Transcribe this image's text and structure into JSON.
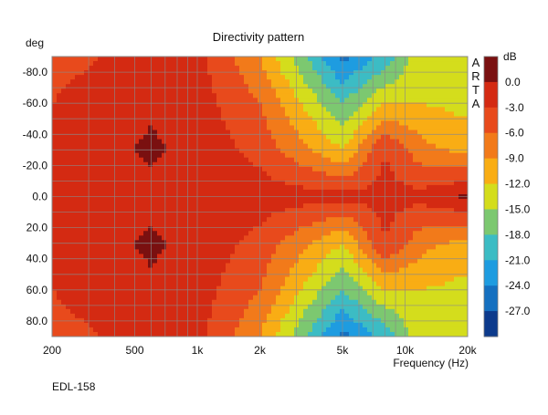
{
  "chart_data": {
    "type": "heatmap",
    "title": "Directivity pattern",
    "ylabel": "deg",
    "xlabel": "Frequency (Hz)",
    "x_scale": "log",
    "xlim": [
      200,
      20000
    ],
    "ylim": [
      -90,
      90
    ],
    "y_inverted": true,
    "x_ticks": [
      {
        "value": 200,
        "label": "200"
      },
      {
        "value": 500,
        "label": "500"
      },
      {
        "value": 1000,
        "label": "1k"
      },
      {
        "value": 2000,
        "label": "2k"
      },
      {
        "value": 5000,
        "label": "5k"
      },
      {
        "value": 10000,
        "label": "10k"
      },
      {
        "value": 20000,
        "label": "20k"
      }
    ],
    "y_ticks": [
      {
        "value": -80,
        "label": "-80.0"
      },
      {
        "value": -60,
        "label": "-60.0"
      },
      {
        "value": -40,
        "label": "-40.0"
      },
      {
        "value": -20,
        "label": "-20.0"
      },
      {
        "value": 0,
        "label": "0.0"
      },
      {
        "value": 20,
        "label": "20.0"
      },
      {
        "value": 40,
        "label": "40.0"
      },
      {
        "value": 60,
        "label": "60.0"
      },
      {
        "value": 80,
        "label": "80.0"
      }
    ],
    "colorbar": {
      "unit": "dB",
      "levels": [
        {
          "label": "",
          "color": "#7a1010"
        },
        {
          "label": "0.0",
          "color": "#d42a12"
        },
        {
          "label": "-3.0",
          "color": "#e84a1c"
        },
        {
          "label": "-6.0",
          "color": "#f27a1a"
        },
        {
          "label": "-9.0",
          "color": "#f9ad14"
        },
        {
          "label": "-12.0",
          "color": "#d4dd1c"
        },
        {
          "label": "-15.0",
          "color": "#7cc870"
        },
        {
          "label": "-18.0",
          "color": "#3cbcc4"
        },
        {
          "label": "-21.0",
          "color": "#1e9ce0"
        },
        {
          "label": "-24.0",
          "color": "#1570c0"
        },
        {
          "label": "-27.0",
          "color": "#0c3a8c"
        }
      ]
    },
    "grid": true,
    "side_label": [
      "A",
      "R",
      "T",
      "A"
    ],
    "footer_label": "EDL-158",
    "attenuation_db_at": [
      {
        "freq": 200,
        "angles": [
          -90,
          -60,
          -30,
          0,
          30,
          60,
          90
        ],
        "db": [
          -4,
          -3,
          -2,
          -1.5,
          -2,
          -3,
          -4
        ]
      },
      {
        "freq": 600,
        "angles": [
          -90,
          -60,
          -30,
          0,
          30,
          60,
          90
        ],
        "db": [
          -2,
          -0.5,
          0.5,
          -1,
          0.5,
          -0.5,
          -2
        ]
      },
      {
        "freq": 1000,
        "angles": [
          -90,
          -60,
          -30,
          0,
          30,
          60,
          90
        ],
        "db": [
          -2,
          -1.5,
          -1,
          -1,
          -1,
          -1.5,
          -2
        ]
      },
      {
        "freq": 2000,
        "angles": [
          -90,
          -60,
          -30,
          0,
          30,
          60,
          90
        ],
        "db": [
          -9,
          -6,
          -4,
          -1.5,
          -4,
          -6,
          -9
        ]
      },
      {
        "freq": 5000,
        "angles": [
          -90,
          -60,
          -30,
          0,
          30,
          60,
          90
        ],
        "db": [
          -25,
          -18,
          -12,
          -2,
          -12,
          -18,
          -25
        ]
      },
      {
        "freq": 8000,
        "angles": [
          -90,
          -60,
          -30,
          0,
          30,
          60,
          90
        ],
        "db": [
          -20,
          -12,
          -3,
          -2,
          -3,
          -12,
          -20
        ]
      },
      {
        "freq": 12000,
        "angles": [
          -90,
          -60,
          -30,
          0,
          30,
          60,
          90
        ],
        "db": [
          -13,
          -12,
          -8,
          -2,
          -8,
          -12,
          -13
        ]
      },
      {
        "freq": 20000,
        "angles": [
          -90,
          -60,
          -30,
          0,
          30,
          60,
          90
        ],
        "db": [
          -15,
          -13,
          -10,
          0.5,
          -10,
          -13,
          -15
        ]
      }
    ]
  }
}
